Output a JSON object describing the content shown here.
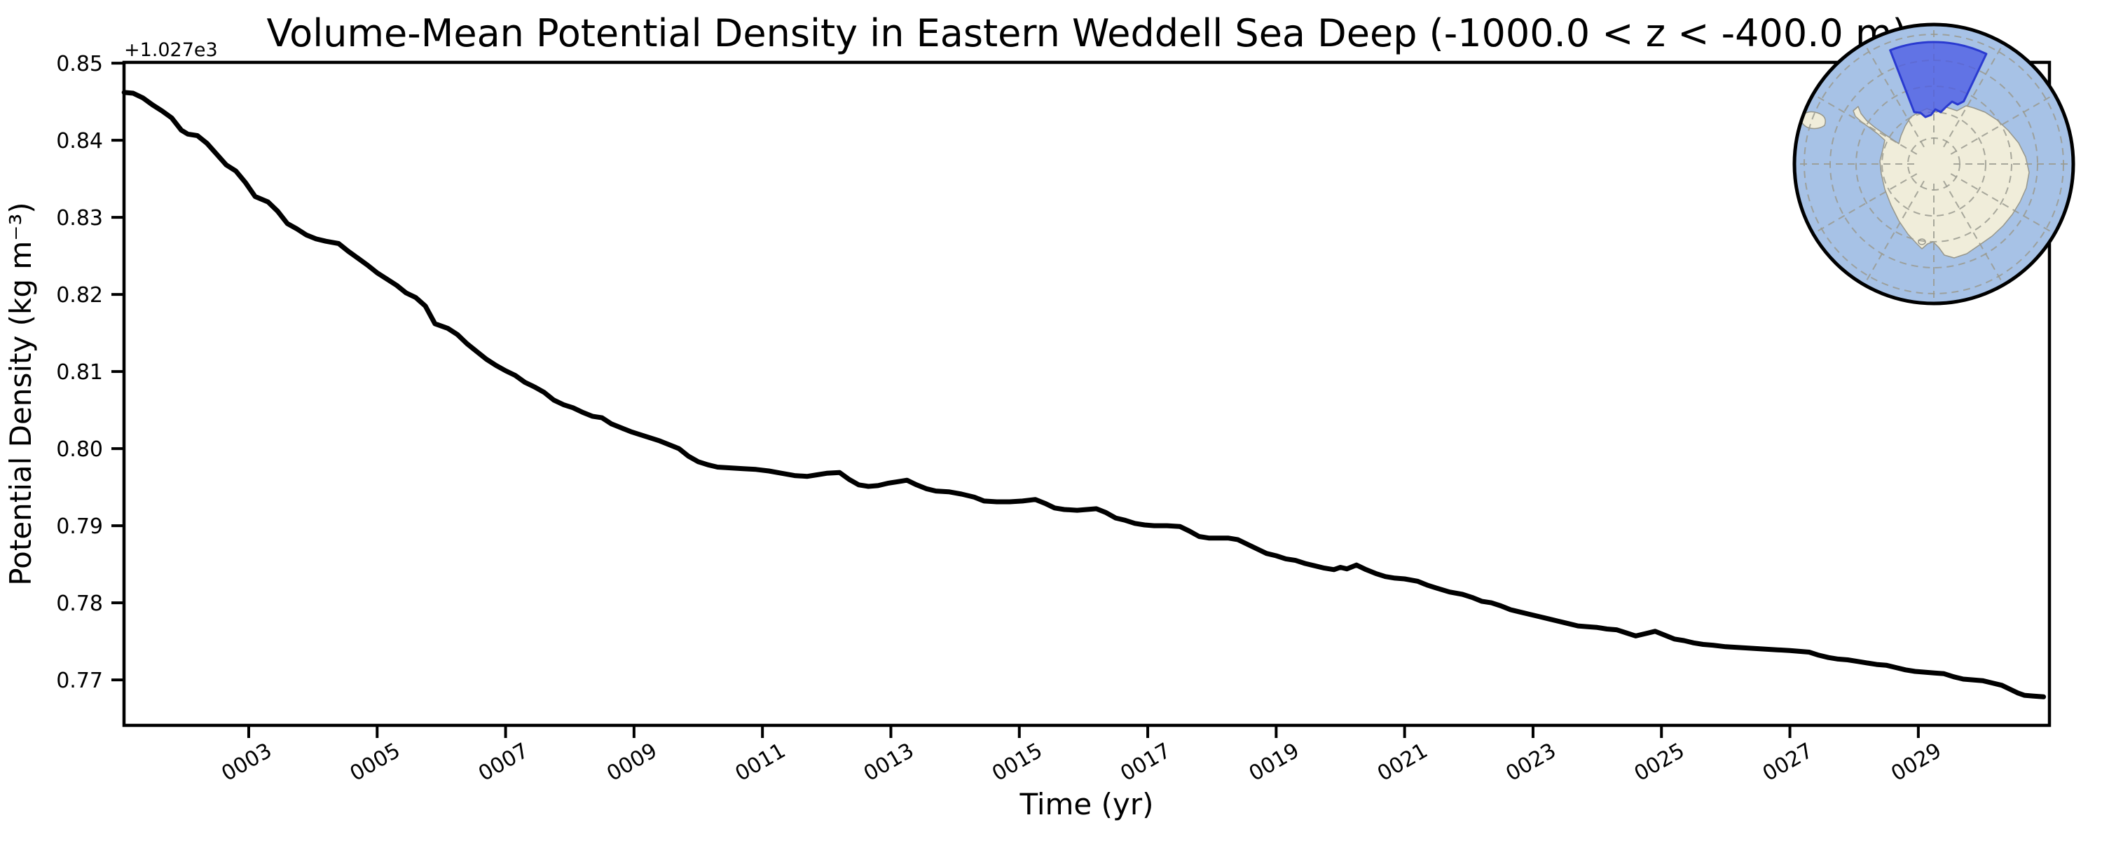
{
  "figure": {
    "title": "Volume-Mean Potential Density in Eastern Weddell Sea Deep (-1000.0 < z < -400.0 m)",
    "xlabel": "Time (yr)",
    "ylabel": "Potential Density (kg m⁻³)",
    "y_offset_text": "+1.027e3"
  },
  "chart_data": {
    "type": "line",
    "title": "Volume-Mean Potential Density in Eastern Weddell Sea Deep (-1000.0 < z < -400.0 m)",
    "xlabel": "Time (yr)",
    "ylabel": "Potential Density (kg m⁻³)",
    "y_axis_offset_text": "+1.027e3",
    "y_base": 1027.0,
    "y_note": "actual potential density (kg m⁻³) = y_base + y",
    "xlim": [
      1.058,
      31.042
    ],
    "ylim": [
      0.7641,
      0.8501
    ],
    "grid": false,
    "legend": null,
    "line_color": "#000000",
    "x_ticks": [
      3,
      5,
      7,
      9,
      11,
      13,
      15,
      17,
      19,
      21,
      23,
      25,
      27,
      29
    ],
    "x_tick_labels": [
      "0003",
      "0005",
      "0007",
      "0009",
      "0011",
      "0013",
      "0015",
      "0017",
      "0019",
      "0021",
      "0023",
      "0025",
      "0027",
      "0029"
    ],
    "y_ticks": [
      0.77,
      0.78,
      0.79,
      0.8,
      0.81,
      0.82,
      0.83,
      0.84,
      0.85
    ],
    "y_tick_labels": [
      "0.77",
      "0.78",
      "0.79",
      "0.80",
      "0.81",
      "0.82",
      "0.83",
      "0.84",
      "0.85"
    ],
    "series": [
      {
        "name": "volume-mean potential density",
        "x": [
          1.06,
          1.2,
          1.35,
          1.5,
          1.65,
          1.8,
          1.95,
          2.05,
          2.2,
          2.35,
          2.5,
          2.65,
          2.8,
          2.95,
          3.1,
          3.3,
          3.45,
          3.6,
          3.75,
          3.9,
          4.05,
          4.2,
          4.4,
          4.55,
          4.7,
          4.85,
          5.0,
          5.15,
          5.3,
          5.45,
          5.6,
          5.75,
          5.9,
          6.1,
          6.25,
          6.4,
          6.55,
          6.7,
          6.85,
          7.0,
          7.15,
          7.3,
          7.45,
          7.6,
          7.75,
          7.9,
          8.05,
          8.2,
          8.35,
          8.5,
          8.65,
          8.8,
          8.95,
          9.1,
          9.25,
          9.4,
          9.55,
          9.7,
          9.85,
          10.0,
          10.15,
          10.3,
          10.5,
          10.7,
          10.9,
          11.1,
          11.3,
          11.5,
          11.7,
          11.85,
          12.0,
          12.2,
          12.35,
          12.5,
          12.65,
          12.8,
          12.95,
          13.1,
          13.25,
          13.4,
          13.55,
          13.7,
          13.9,
          14.1,
          14.3,
          14.45,
          14.65,
          14.85,
          15.05,
          15.25,
          15.4,
          15.55,
          15.7,
          15.9,
          16.05,
          16.2,
          16.35,
          16.5,
          16.65,
          16.8,
          16.95,
          17.1,
          17.3,
          17.5,
          17.65,
          17.8,
          17.95,
          18.1,
          18.25,
          18.4,
          18.55,
          18.7,
          18.85,
          19.0,
          19.15,
          19.3,
          19.45,
          19.6,
          19.75,
          19.9,
          20.0,
          20.1,
          20.25,
          20.4,
          20.55,
          20.7,
          20.85,
          21.0,
          21.2,
          21.35,
          21.5,
          21.7,
          21.9,
          22.05,
          22.2,
          22.35,
          22.5,
          22.65,
          22.8,
          22.95,
          23.1,
          23.25,
          23.4,
          23.55,
          23.7,
          23.85,
          24.0,
          24.15,
          24.3,
          24.45,
          24.6,
          24.75,
          24.9,
          25.05,
          25.2,
          25.35,
          25.5,
          25.65,
          25.8,
          26.0,
          26.2,
          26.4,
          26.6,
          26.8,
          27.0,
          27.15,
          27.3,
          27.45,
          27.6,
          27.75,
          27.9,
          28.05,
          28.2,
          28.35,
          28.5,
          28.65,
          28.8,
          28.95,
          29.1,
          29.25,
          29.4,
          29.55,
          29.7,
          29.85,
          30.0,
          30.15,
          30.3,
          30.45,
          30.55,
          30.65,
          30.8,
          30.95
        ],
        "y": [
          0.8462,
          0.8461,
          0.8455,
          0.8446,
          0.8438,
          0.8429,
          0.8413,
          0.8408,
          0.8406,
          0.8396,
          0.8382,
          0.8368,
          0.836,
          0.8345,
          0.8327,
          0.832,
          0.8308,
          0.8292,
          0.8285,
          0.8277,
          0.8272,
          0.8269,
          0.8266,
          0.8256,
          0.8247,
          0.8238,
          0.8228,
          0.822,
          0.8212,
          0.8202,
          0.8196,
          0.8185,
          0.8162,
          0.8156,
          0.8148,
          0.8136,
          0.8126,
          0.8116,
          0.8108,
          0.8101,
          0.8095,
          0.8086,
          0.808,
          0.8073,
          0.8063,
          0.8057,
          0.8053,
          0.8047,
          0.8042,
          0.804,
          0.8032,
          0.8027,
          0.8022,
          0.8018,
          0.8014,
          0.801,
          0.8005,
          0.8,
          0.799,
          0.7983,
          0.7979,
          0.7976,
          0.7975,
          0.7974,
          0.7973,
          0.7971,
          0.7968,
          0.7965,
          0.7964,
          0.7966,
          0.7968,
          0.7969,
          0.796,
          0.7953,
          0.7951,
          0.7952,
          0.7955,
          0.7957,
          0.7959,
          0.7953,
          0.7948,
          0.7945,
          0.7944,
          0.7941,
          0.7937,
          0.7932,
          0.7931,
          0.7931,
          0.7932,
          0.7934,
          0.7929,
          0.7923,
          0.7921,
          0.792,
          0.7921,
          0.7922,
          0.7917,
          0.791,
          0.7907,
          0.7903,
          0.7901,
          0.79,
          0.79,
          0.7899,
          0.7893,
          0.7886,
          0.7884,
          0.7884,
          0.7884,
          0.7882,
          0.7876,
          0.787,
          0.7864,
          0.7861,
          0.7857,
          0.7855,
          0.7851,
          0.7848,
          0.7845,
          0.7843,
          0.7846,
          0.7844,
          0.7849,
          0.7843,
          0.7838,
          0.7834,
          0.7832,
          0.7831,
          0.7828,
          0.7823,
          0.7819,
          0.7814,
          0.7811,
          0.7807,
          0.7802,
          0.78,
          0.7796,
          0.7791,
          0.7788,
          0.7785,
          0.7782,
          0.7779,
          0.7776,
          0.7773,
          0.777,
          0.7769,
          0.7768,
          0.7766,
          0.7765,
          0.7761,
          0.7757,
          0.776,
          0.7763,
          0.7758,
          0.7753,
          0.7751,
          0.7748,
          0.7746,
          0.7745,
          0.7743,
          0.7742,
          0.7741,
          0.774,
          0.7739,
          0.7738,
          0.7737,
          0.7736,
          0.7732,
          0.7729,
          0.7727,
          0.7726,
          0.7724,
          0.7722,
          0.772,
          0.7719,
          0.7716,
          0.7713,
          0.7711,
          0.771,
          0.7709,
          0.7708,
          0.7704,
          0.7701,
          0.77,
          0.7699,
          0.7696,
          0.7693,
          0.7687,
          0.7683,
          0.768,
          0.7679,
          0.7678
        ]
      }
    ]
  },
  "inset_map": {
    "description": "South polar view of Antarctica with the Eastern Weddell Sea sector highlighted",
    "colors": {
      "ocean": "#a7c2e6",
      "land": "#f0edda",
      "region_fill": "#4d5ce4",
      "region_edge": "#2a3ad0",
      "graticule": "#9a9a8f",
      "outline": "#000000"
    }
  }
}
